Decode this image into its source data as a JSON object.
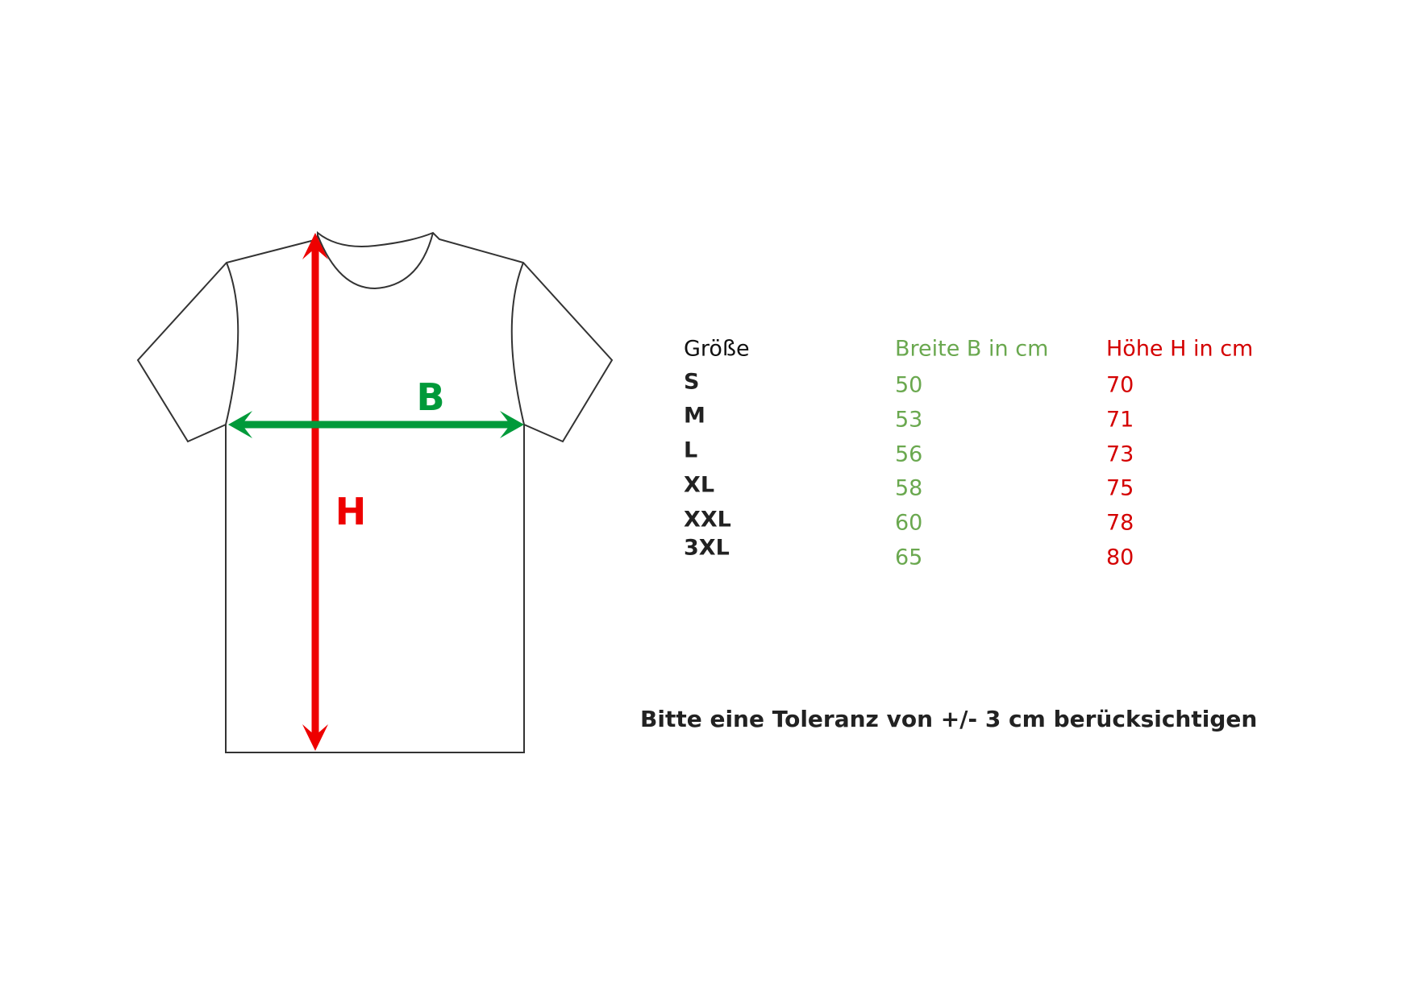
{
  "diagram": {
    "width_label": "B",
    "height_label": "H",
    "colors": {
      "width": "#009a3a",
      "height": "#ee0000",
      "outline": "#333333"
    }
  },
  "table": {
    "headers": {
      "size": "Größe",
      "width": "Breite B in cm",
      "height": "Höhe H in cm"
    },
    "rows": [
      {
        "size": "S",
        "width": "50",
        "height": "70"
      },
      {
        "size": "M",
        "width": "53",
        "height": "71"
      },
      {
        "size": "L",
        "width": "56",
        "height": "73"
      },
      {
        "size": "XL",
        "width": "58",
        "height": "75"
      },
      {
        "size": "XXL",
        "width": "60",
        "height": "78"
      },
      {
        "size": "3XL",
        "width": "65",
        "height": "80"
      }
    ],
    "colors": {
      "width": "#6aa84f",
      "height": "#d40000"
    }
  },
  "note": "Bitte eine Toleranz von +/- 3 cm berücksichtigen"
}
